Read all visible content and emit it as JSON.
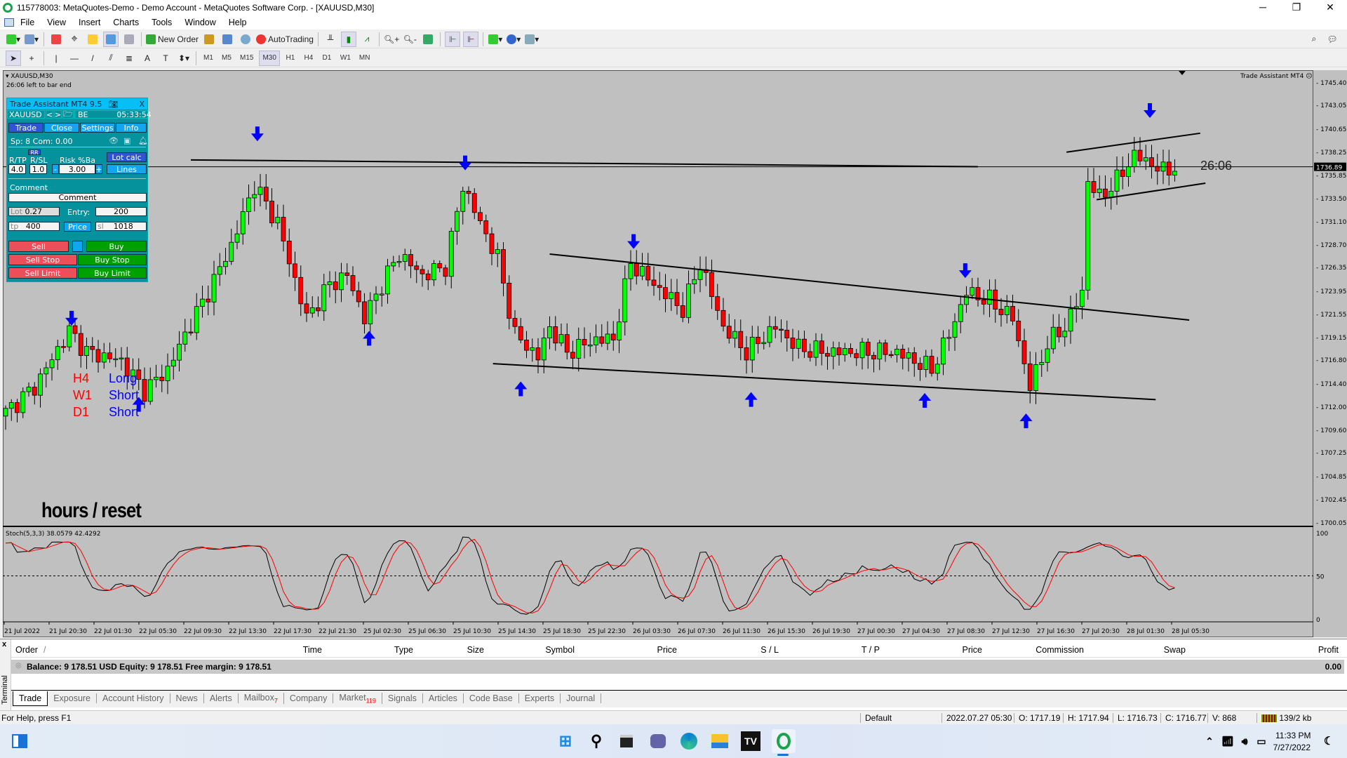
{
  "window": {
    "title": "115778003: MetaQuotes-Demo - Demo Account - MetaQuotes Software Corp. - [XAUUSD,M30]",
    "minimize": "─",
    "maximize": "❐",
    "close": "✕"
  },
  "menu": [
    "File",
    "View",
    "Insert",
    "Charts",
    "Tools",
    "Window",
    "Help"
  ],
  "toolbar": {
    "new_order": "New Order",
    "autotrading": "AutoTrading",
    "timeframes": [
      "M1",
      "M5",
      "M15",
      "M30",
      "H1",
      "H4",
      "D1",
      "W1",
      "MN"
    ],
    "selected_timeframe": "M30"
  },
  "chart": {
    "symbol_label": "XAUUSD,M30",
    "bar_timer": "26:06 left to bar end",
    "indicator_label": "Trade Assistant MT4",
    "countdown": "26:06",
    "signals": [
      {
        "tf": "H4",
        "dir": "Long"
      },
      {
        "tf": "W1",
        "dir": "Short"
      },
      {
        "tf": "D1",
        "dir": "Short"
      }
    ],
    "hours_reset": "hours / reset",
    "stoch_label": "Stoch(5,3,3) 38.0579 42.4292"
  },
  "chart_data": {
    "type": "candlestick",
    "symbol": "XAUUSD",
    "timeframe": "M30",
    "ylim": [
      1700.05,
      1745.4
    ],
    "price_ticks": [
      1745.4,
      1743.05,
      1740.65,
      1738.25,
      1735.85,
      1733.5,
      1731.1,
      1728.7,
      1726.35,
      1723.95,
      1721.55,
      1719.15,
      1716.8,
      1714.4,
      1712.0,
      1709.6,
      1707.25,
      1704.85,
      1702.45,
      1700.05
    ],
    "current_price": 1736.89,
    "time_labels": [
      "21 Jul 2022",
      "21 Jul 20:30",
      "22 Jul 01:30",
      "22 Jul 05:30",
      "22 Jul 09:30",
      "22 Jul 13:30",
      "22 Jul 17:30",
      "22 Jul 21:30",
      "25 Jul 02:30",
      "25 Jul 06:30",
      "25 Jul 10:30",
      "25 Jul 14:30",
      "25 Jul 18:30",
      "25 Jul 22:30",
      "26 Jul 03:30",
      "26 Jul 07:30",
      "26 Jul 11:30",
      "26 Jul 15:30",
      "26 Jul 19:30",
      "27 Jul 00:30",
      "27 Jul 04:30",
      "27 Jul 08:30",
      "27 Jul 12:30",
      "27 Jul 16:30",
      "27 Jul 20:30",
      "28 Jul 01:30",
      "28 Jul 05:30"
    ],
    "approx_close_by_bar": [
      [
        0,
        1711.6
      ],
      [
        5,
        1714.2
      ],
      [
        11,
        1720.0
      ],
      [
        14,
        1717.8
      ],
      [
        20,
        1716.9
      ],
      [
        24,
        1713.8
      ],
      [
        28,
        1716.0
      ],
      [
        31,
        1719.6
      ],
      [
        35,
        1724.0
      ],
      [
        39,
        1728.8
      ],
      [
        43,
        1735.0
      ],
      [
        47,
        1731.1
      ],
      [
        52,
        1721.3
      ],
      [
        56,
        1724.8
      ],
      [
        59,
        1725.7
      ],
      [
        62,
        1721.3
      ],
      [
        65,
        1724.8
      ],
      [
        68,
        1727.9
      ],
      [
        72,
        1725.7
      ],
      [
        76,
        1726.6
      ],
      [
        79,
        1735.0
      ],
      [
        82,
        1731.1
      ],
      [
        85,
        1727.5
      ],
      [
        88,
        1719.6
      ],
      [
        92,
        1717.3
      ],
      [
        94,
        1720.4
      ],
      [
        97,
        1717.8
      ],
      [
        102,
        1719.1
      ],
      [
        105,
        1719.1
      ],
      [
        108,
        1727.0
      ],
      [
        112,
        1724.8
      ],
      [
        117,
        1722.2
      ],
      [
        120,
        1727.0
      ],
      [
        124,
        1720.4
      ],
      [
        128,
        1717.8
      ],
      [
        133,
        1720.4
      ],
      [
        137,
        1718.2
      ],
      [
        142,
        1717.8
      ],
      [
        148,
        1717.8
      ],
      [
        154,
        1717.8
      ],
      [
        157,
        1716.9
      ],
      [
        160,
        1716.0
      ],
      [
        163,
        1719.6
      ],
      [
        166,
        1724.0
      ],
      [
        170,
        1723.1
      ],
      [
        174,
        1721.3
      ],
      [
        177,
        1714.2
      ],
      [
        180,
        1718.7
      ],
      [
        183,
        1720.4
      ],
      [
        186,
        1724.0
      ],
      [
        187,
        1735.5
      ],
      [
        189,
        1733.7
      ],
      [
        192,
        1735.5
      ],
      [
        195,
        1738.1
      ],
      [
        198,
        1737.2
      ],
      [
        200,
        1736.4
      ],
      [
        202,
        1736.9
      ]
    ],
    "trendlines": [
      [
        [
          32,
          1737.6
        ],
        [
          168,
          1736.9
        ]
      ],
      [
        [
          94,
          1727.9
        ],
        [
          204.5,
          1721.1
        ]
      ],
      [
        [
          84.2,
          1716.6
        ],
        [
          198.7,
          1712.9
        ]
      ],
      [
        [
          183.3,
          1738.4
        ],
        [
          206.4,
          1740.35
        ]
      ],
      [
        [
          188.5,
          1733.5
        ],
        [
          207.3,
          1735.2
        ]
      ]
    ],
    "down_arrows": [
      [
        11.4,
        1720.6
      ],
      [
        43.5,
        1739.6
      ],
      [
        79.4,
        1736.6
      ],
      [
        108.5,
        1728.5
      ],
      [
        165.8,
        1725.5
      ],
      [
        197.7,
        1742.0
      ]
    ],
    "up_arrows": [
      [
        23,
        1713.1
      ],
      [
        62.8,
        1719.9
      ],
      [
        89,
        1714.7
      ],
      [
        128.8,
        1713.6
      ],
      [
        158.8,
        1713.5
      ],
      [
        176.3,
        1711.4
      ]
    ],
    "stochastic": {
      "k": 38.0579,
      "d": 42.4292,
      "levels": [
        0,
        50,
        100
      ],
      "colors": {
        "main": "#000000",
        "signal": "#ff0000"
      }
    },
    "colors": {
      "bull": "#00ff00",
      "bear": "#ff0000",
      "background": "#c0c0c0",
      "arrows": "#0000ff"
    }
  },
  "trade_assistant": {
    "title": "Trade Assistant MT4 9.5",
    "symbol": "XAUUSD",
    "prev": "<",
    "next": ">",
    "be": "BE",
    "time": "05:33:54",
    "tabs": [
      "Trade",
      "Close",
      "Settings",
      "Info"
    ],
    "spread": "Sp: 8  Com: 0.00",
    "rr": "RR",
    "rtp_label": "R/TP",
    "rsl_label": "R/SL",
    "rtp": "4.0",
    "rsl": "1.0",
    "risk_label": "Risk %Ba",
    "risk": "3.00",
    "minus": "-",
    "plus": "+",
    "lot_calc": "Lot calc",
    "lines": "Lines",
    "comment_label": "Comment",
    "comment": "Comment",
    "lot_label": "Lot",
    "lot": "0.27",
    "entry_label": "Entry:",
    "entry": "200",
    "tp_label": "tp",
    "tp": "400",
    "price": "Price",
    "sl_label": "sl",
    "sl": "1018",
    "sell": "Sell",
    "buy": "Buy",
    "sell_stop": "Sell Stop",
    "buy_stop": "Buy Stop",
    "sell_limit": "Sell Limit",
    "buy_limit": "Buy Limit"
  },
  "terminal": {
    "side_label": "Terminal",
    "close": "x",
    "columns": [
      "Order",
      "Time",
      "Type",
      "Size",
      "Symbol",
      "Price",
      "S / L",
      "T / P",
      "Price",
      "Commission",
      "Swap",
      "Profit"
    ],
    "balance": "Balance: 9 178.51 USD  Equity: 9 178.51  Free margin: 9 178.51",
    "profit": "0.00",
    "tabs": [
      {
        "label": "Trade"
      },
      {
        "label": "Exposure"
      },
      {
        "label": "Account History"
      },
      {
        "label": "News"
      },
      {
        "label": "Alerts"
      },
      {
        "label": "Mailbox",
        "badge": "7"
      },
      {
        "label": "Company"
      },
      {
        "label": "Market",
        "badge": "119"
      },
      {
        "label": "Signals"
      },
      {
        "label": "Articles"
      },
      {
        "label": "Code Base"
      },
      {
        "label": "Experts"
      },
      {
        "label": "Journal"
      }
    ]
  },
  "status": {
    "help": "For Help, press F1",
    "profile": "Default",
    "datetime": "2022.07.27 05:30",
    "open": "O: 1717.19",
    "high": "H: 1717.94",
    "low": "L: 1716.73",
    "close": "C: 1716.77",
    "volume": "V: 868",
    "traffic": "139/2 kb"
  },
  "taskbar": {
    "time": "11:33 PM",
    "date": "7/27/2022"
  }
}
